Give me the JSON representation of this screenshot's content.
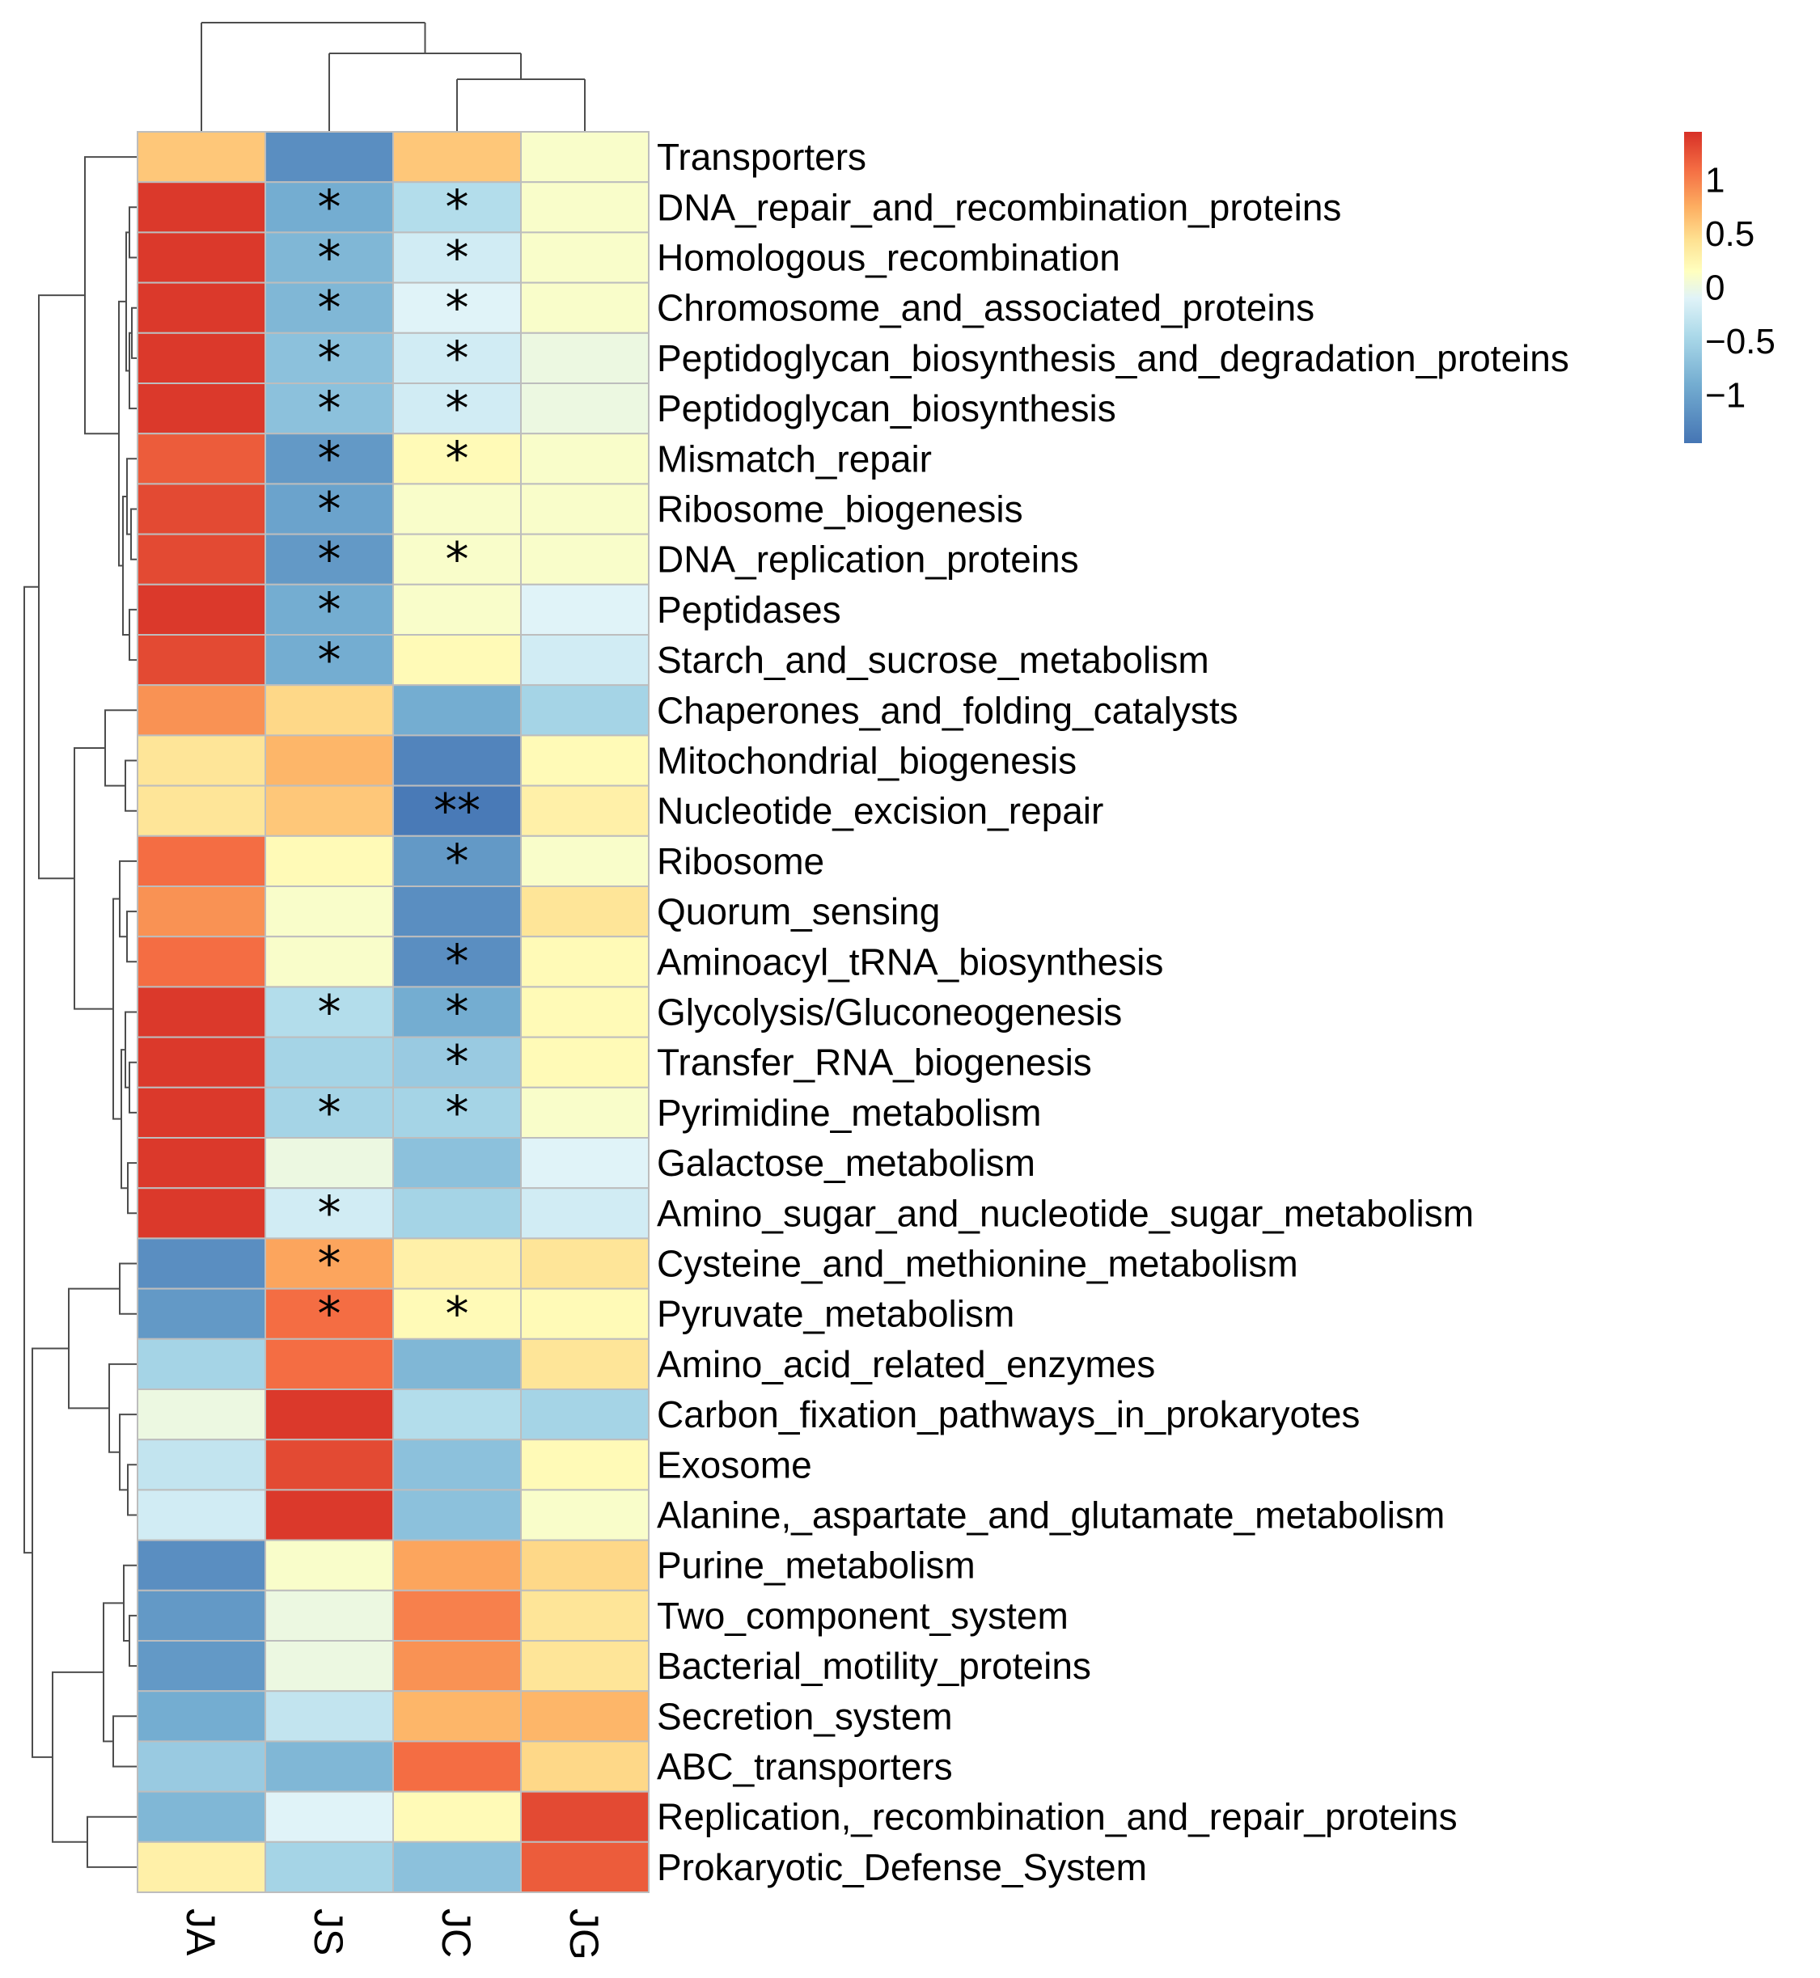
{
  "chart_data": {
    "type": "heatmap",
    "title": "",
    "xlabel": "",
    "ylabel": "",
    "columns": [
      "JA",
      "JS",
      "JC",
      "JG"
    ],
    "rows": [
      "Transporters",
      "DNA_repair_and_recombination_proteins",
      "Homologous_recombination",
      "Chromosome_and_associated_proteins",
      "Peptidoglycan_biosynthesis_and_degradation_proteins",
      "Peptidoglycan_biosynthesis",
      "Mismatch_repair",
      "Ribosome_biogenesis",
      "DNA_replication_proteins",
      "Peptidases",
      "Starch_and_sucrose_metabolism",
      "Chaperones_and_folding_catalysts",
      "Mitochondrial_biogenesis",
      "Nucleotide_excision_repair",
      "Ribosome",
      "Quorum_sensing",
      "Aminoacyl_tRNA_biosynthesis",
      "Glycolysis/Gluconeogenesis",
      "Transfer_RNA_biogenesis",
      "Pyrimidine_metabolism",
      "Galactose_metabolism",
      "Amino_sugar_and_nucleotide_sugar_metabolism",
      "Cysteine_and_methionine_metabolism",
      "Pyruvate_metabolism",
      "Amino_acid_related_enzymes",
      "Carbon_fixation_pathways_in_prokaryotes",
      "Exosome",
      "Alanine,_aspartate_and_glutamate_metabolism",
      "Purine_metabolism",
      "Two_component_system",
      "Bacterial_motility_proteins",
      "Secretion_system",
      "ABC_transporters",
      "Replication,_recombination_and_repair_proteins",
      "Prokaryotic_Defense_System"
    ],
    "values": [
      [
        0.6,
        -1.2,
        0.6,
        0.1
      ],
      [
        1.4,
        -0.9,
        -0.4,
        0.1
      ],
      [
        1.4,
        -0.8,
        -0.2,
        0.1
      ],
      [
        1.4,
        -0.8,
        -0.1,
        0.1
      ],
      [
        1.4,
        -0.7,
        -0.2,
        0.0
      ],
      [
        1.4,
        -0.7,
        -0.2,
        0.0
      ],
      [
        1.2,
        -1.1,
        0.2,
        0.1
      ],
      [
        1.3,
        -1.0,
        0.1,
        0.1
      ],
      [
        1.3,
        -1.1,
        0.1,
        0.1
      ],
      [
        1.4,
        -0.9,
        0.1,
        -0.1
      ],
      [
        1.3,
        -0.9,
        0.2,
        -0.2
      ],
      [
        0.9,
        0.5,
        -0.9,
        -0.5
      ],
      [
        0.4,
        0.7,
        -1.3,
        0.2
      ],
      [
        0.4,
        0.6,
        -1.4,
        0.3
      ],
      [
        1.1,
        0.2,
        -1.1,
        0.1
      ],
      [
        0.9,
        0.1,
        -1.2,
        0.4
      ],
      [
        1.1,
        0.1,
        -1.2,
        0.2
      ],
      [
        1.4,
        -0.4,
        -0.9,
        0.2
      ],
      [
        1.4,
        -0.5,
        -0.6,
        0.2
      ],
      [
        1.4,
        -0.5,
        -0.5,
        0.1
      ],
      [
        1.4,
        0.0,
        -0.7,
        -0.1
      ],
      [
        1.4,
        -0.2,
        -0.5,
        -0.2
      ],
      [
        -1.2,
        0.8,
        0.3,
        0.4
      ],
      [
        -1.1,
        1.1,
        0.2,
        0.2
      ],
      [
        -0.5,
        1.1,
        -0.8,
        0.4
      ],
      [
        0.0,
        1.4,
        -0.4,
        -0.5
      ],
      [
        -0.3,
        1.3,
        -0.7,
        0.2
      ],
      [
        -0.2,
        1.4,
        -0.7,
        0.1
      ],
      [
        -1.2,
        0.1,
        0.8,
        0.5
      ],
      [
        -1.1,
        0.0,
        1.0,
        0.4
      ],
      [
        -1.1,
        0.0,
        0.9,
        0.4
      ],
      [
        -0.9,
        -0.3,
        0.7,
        0.7
      ],
      [
        -0.6,
        -0.8,
        1.1,
        0.5
      ],
      [
        -0.8,
        -0.1,
        0.2,
        1.3
      ],
      [
        0.3,
        -0.5,
        -0.7,
        1.2
      ]
    ],
    "significance": [
      [
        "",
        "",
        "",
        ""
      ],
      [
        "",
        "*",
        "*",
        ""
      ],
      [
        "",
        "*",
        "*",
        ""
      ],
      [
        "",
        "*",
        "*",
        ""
      ],
      [
        "",
        "*",
        "*",
        ""
      ],
      [
        "",
        "*",
        "*",
        ""
      ],
      [
        "",
        "*",
        "*",
        ""
      ],
      [
        "",
        "*",
        "",
        ""
      ],
      [
        "",
        "*",
        "*",
        ""
      ],
      [
        "",
        "*",
        "",
        ""
      ],
      [
        "",
        "*",
        "",
        ""
      ],
      [
        "",
        "",
        "",
        ""
      ],
      [
        "",
        "",
        "",
        ""
      ],
      [
        "",
        "",
        "**",
        ""
      ],
      [
        "",
        "",
        "*",
        ""
      ],
      [
        "",
        "",
        "",
        ""
      ],
      [
        "",
        "",
        "*",
        ""
      ],
      [
        "",
        "*",
        "*",
        ""
      ],
      [
        "",
        "",
        "*",
        ""
      ],
      [
        "",
        "*",
        "*",
        ""
      ],
      [
        "",
        "",
        "",
        ""
      ],
      [
        "",
        "*",
        "",
        ""
      ],
      [
        "",
        "*",
        "",
        ""
      ],
      [
        "",
        "*",
        "*",
        ""
      ],
      [
        "",
        "",
        "",
        ""
      ],
      [
        "",
        "",
        "",
        ""
      ],
      [
        "",
        "",
        "",
        ""
      ],
      [
        "",
        "",
        "",
        ""
      ],
      [
        "",
        "",
        "",
        ""
      ],
      [
        "",
        "",
        "",
        ""
      ],
      [
        "",
        "",
        "",
        ""
      ],
      [
        "",
        "",
        "",
        ""
      ],
      [
        "",
        "",
        "",
        ""
      ],
      [
        "",
        "",
        "",
        ""
      ],
      [
        "",
        "",
        "",
        ""
      ]
    ],
    "color_scale": {
      "min": -1.45,
      "max": 1.45,
      "stops": [
        {
          "value": -1.45,
          "color": "#4575b4"
        },
        {
          "value": -0.9,
          "color": "#74add1"
        },
        {
          "value": -0.45,
          "color": "#abd9e9"
        },
        {
          "value": -0.1,
          "color": "#e0f3f8"
        },
        {
          "value": 0.15,
          "color": "#ffffbf"
        },
        {
          "value": 0.45,
          "color": "#fee090"
        },
        {
          "value": 0.75,
          "color": "#fdae61"
        },
        {
          "value": 1.1,
          "color": "#f46d43"
        },
        {
          "value": 1.45,
          "color": "#d73027"
        }
      ]
    },
    "legend": {
      "position": "top-right",
      "ticks": [
        {
          "value": 1,
          "label": "1"
        },
        {
          "value": 0.5,
          "label": "0.5"
        },
        {
          "value": 0,
          "label": "0"
        },
        {
          "value": -0.5,
          "label": "−0.5"
        },
        {
          "value": -1,
          "label": "−1"
        }
      ]
    },
    "column_dendrogram": {
      "order": [
        "JA",
        "JS",
        "JC",
        "JG"
      ],
      "merges": [
        [
          2,
          3
        ],
        [
          1,
          "A"
        ],
        [
          0,
          "B"
        ]
      ]
    },
    "row_dendrogram": "hierarchical clustering tree of rows (left side)"
  }
}
